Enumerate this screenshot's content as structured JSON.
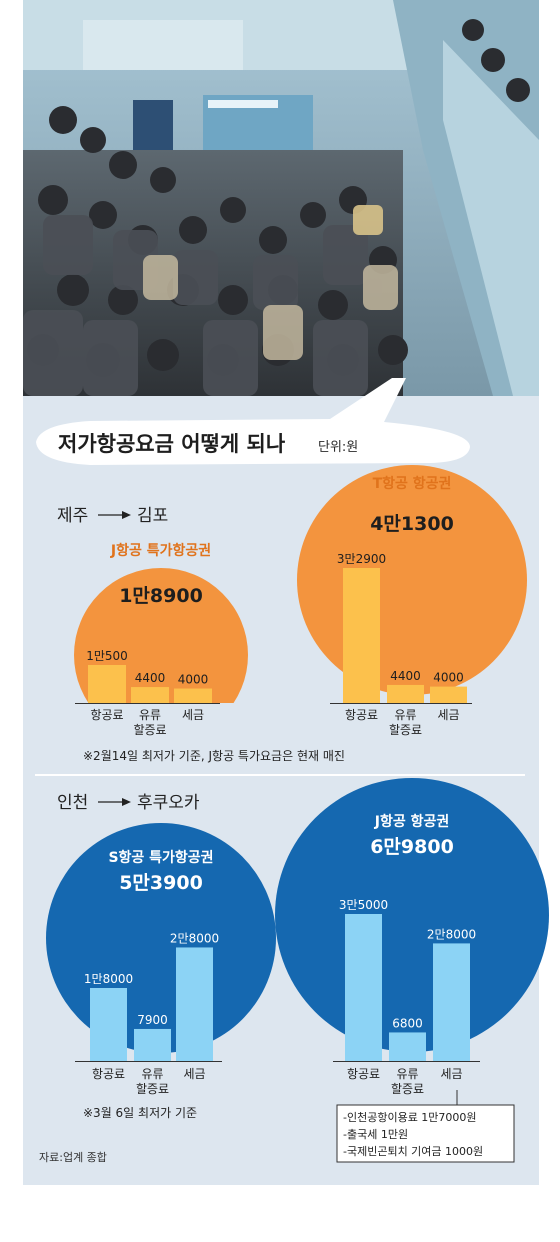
{
  "title": "저가항공요금 어떻게 되나",
  "unit": "단위:원",
  "source": "자료:업계 종합",
  "colors": {
    "orange_circle": "#f3943e",
    "orange_bar": "#fcc14c",
    "blue_circle": "#1568b0",
    "blue_bar": "#8cd3f5",
    "panel": "#dde6ef",
    "label_orange": "#e0731c"
  },
  "sections": [
    {
      "route": {
        "from": "제주",
        "to": "김포"
      },
      "note": "※2월14일 최저가 기준, J항공 특가요금은 현재 매진"
    },
    {
      "route": {
        "from": "인천",
        "to": "후쿠오카"
      },
      "note": "※3월 6일 최저가 기준",
      "tax_breakdown": [
        "-인천공항이용료 1만7000원",
        "-출국세 1만원",
        "-국제빈곤퇴치 기여금 1000원"
      ]
    }
  ],
  "chart_data": [
    {
      "type": "bar",
      "name": "J항공 특가항공권",
      "total": "1만8900",
      "categories": [
        "항공료",
        "유류\n할증료",
        "세금"
      ],
      "values": [
        10500,
        4400,
        4000
      ],
      "value_labels": [
        "1만500",
        "4400",
        "4000"
      ],
      "ylim": [
        0,
        35000
      ]
    },
    {
      "type": "bar",
      "name": "T항공 항공권",
      "total": "4만1300",
      "categories": [
        "항공료",
        "유류\n할증료",
        "세금"
      ],
      "values": [
        32900,
        4400,
        4000
      ],
      "value_labels": [
        "3만2900",
        "4400",
        "4000"
      ],
      "ylim": [
        0,
        35000
      ]
    },
    {
      "type": "bar",
      "name": "S항공 특가항공권",
      "total": "5만3900",
      "categories": [
        "항공료",
        "유류\n할증료",
        "세금"
      ],
      "values": [
        18000,
        7900,
        28000
      ],
      "value_labels": [
        "1만8000",
        "7900",
        "2만8000"
      ],
      "ylim": [
        0,
        35000
      ]
    },
    {
      "type": "bar",
      "name": "J항공 항공권",
      "total": "6만9800",
      "categories": [
        "항공료",
        "유류\n할증료",
        "세금"
      ],
      "values": [
        35000,
        6800,
        28000
      ],
      "value_labels": [
        "3만5000",
        "6800",
        "2만8000"
      ],
      "ylim": [
        0,
        35000
      ]
    }
  ]
}
